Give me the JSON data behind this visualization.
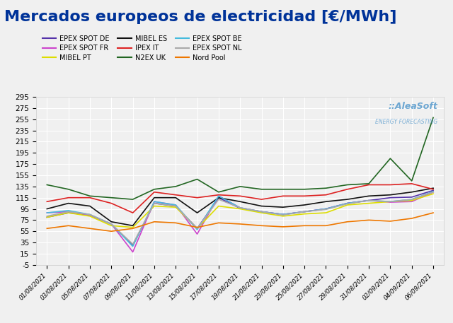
{
  "title": "Mercados europeos de electricidad [€/MWh]",
  "dates": [
    "01/08/2021",
    "03/08/2021",
    "05/08/2021",
    "07/08/2021",
    "09/08/2021",
    "11/08/2021",
    "13/08/2021",
    "15/08/2021",
    "17/08/2021",
    "19/08/2021",
    "21/08/2021",
    "23/08/2021",
    "25/08/2021",
    "27/08/2021",
    "29/08/2021",
    "31/08/2021",
    "02/09/2021",
    "04/09/2021",
    "06/09/2021"
  ],
  "series_order": [
    "EPEX SPOT DE",
    "EPEX SPOT FR",
    "MIBEL PT",
    "MIBEL ES",
    "IPEX IT",
    "N2EX UK",
    "EPEX SPOT BE",
    "EPEX SPOT NL",
    "Nord Pool"
  ],
  "series": {
    "EPEX SPOT DE": {
      "color": "#5533aa",
      "values": [
        80,
        88,
        84,
        68,
        30,
        105,
        100,
        60,
        115,
        96,
        90,
        85,
        90,
        95,
        105,
        110,
        115,
        116,
        128
      ]
    },
    "EPEX SPOT FR": {
      "color": "#cc44cc",
      "values": [
        88,
        90,
        84,
        68,
        18,
        108,
        102,
        50,
        118,
        97,
        90,
        85,
        90,
        95,
        105,
        110,
        107,
        108,
        125
      ]
    },
    "MIBEL PT": {
      "color": "#dddd00",
      "values": [
        80,
        88,
        82,
        65,
        62,
        100,
        98,
        60,
        100,
        95,
        88,
        82,
        86,
        88,
        102,
        105,
        108,
        110,
        122
      ]
    },
    "MIBEL ES": {
      "color": "#111111",
      "values": [
        95,
        105,
        100,
        72,
        65,
        115,
        115,
        88,
        115,
        108,
        100,
        98,
        102,
        108,
        112,
        118,
        120,
        125,
        132
      ]
    },
    "IPEX IT": {
      "color": "#dd2222",
      "values": [
        108,
        115,
        115,
        105,
        88,
        125,
        120,
        115,
        120,
        118,
        112,
        118,
        118,
        120,
        130,
        138,
        138,
        140,
        130
      ]
    },
    "N2EX UK": {
      "color": "#226622",
      "values": [
        138,
        130,
        118,
        115,
        112,
        130,
        135,
        148,
        125,
        135,
        130,
        130,
        130,
        132,
        138,
        140,
        185,
        145,
        258
      ]
    },
    "EPEX SPOT BE": {
      "color": "#44bbdd",
      "values": [
        88,
        92,
        85,
        68,
        28,
        108,
        102,
        58,
        118,
        97,
        90,
        85,
        90,
        95,
        105,
        110,
        108,
        112,
        126
      ]
    },
    "EPEX SPOT NL": {
      "color": "#aaaaaa",
      "values": [
        82,
        90,
        85,
        68,
        32,
        105,
        100,
        60,
        112,
        97,
        90,
        84,
        90,
        94,
        104,
        110,
        108,
        112,
        125
      ]
    },
    "Nord Pool": {
      "color": "#ee7700",
      "values": [
        60,
        65,
        60,
        55,
        60,
        72,
        70,
        62,
        70,
        68,
        65,
        63,
        65,
        65,
        72,
        75,
        73,
        78,
        88
      ]
    }
  },
  "ylim": [
    -5,
    295
  ],
  "yticks": [
    -5,
    15,
    35,
    55,
    75,
    95,
    115,
    135,
    155,
    175,
    195,
    215,
    235,
    255,
    275,
    295
  ],
  "background_color": "#f0f0f0",
  "grid_color": "#ffffff",
  "title_color": "#003399",
  "title_fontsize": 16,
  "legend_fontsize": 7,
  "tick_fontsize": 7.5,
  "watermark_text": "::AleaSoft",
  "watermark_sub": "ENERGY FORECASTING"
}
